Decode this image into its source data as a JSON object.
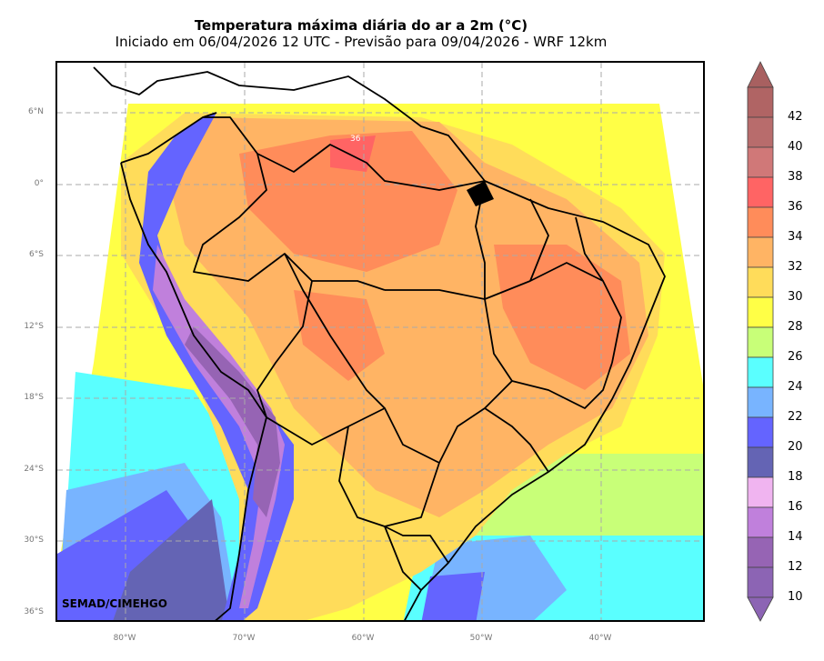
{
  "header": {
    "title": "Temperatura máxima diária do ar a 2m (°C)",
    "subtitle": "Iniciado em 06/04/2026 12 UTC - Previsão para 09/04/2026 - WRF 12km"
  },
  "map": {
    "lat_ticks": [
      "6°N",
      "0°",
      "6°S",
      "12°S",
      "18°S",
      "24°S",
      "30°S",
      "36°S"
    ],
    "lon_ticks": [
      "80°W",
      "70°W",
      "60°W",
      "50°W",
      "40°W"
    ],
    "hotspot_label": "36",
    "credit": "SEMAD/CIMEHGO"
  },
  "colorbar": {
    "levels": [
      "42",
      "40",
      "38",
      "36",
      "34",
      "32",
      "30",
      "28",
      "26",
      "24",
      "22",
      "20",
      "18",
      "16",
      "14",
      "12",
      "10"
    ],
    "colors": {
      "over": "#a86060",
      "t40_42": "#b06464",
      "t38_40": "#b86c6c",
      "t36_38": "#d07878",
      "t34_36": "#ff6464",
      "t32_34": "#ff8c5a",
      "t30_32": "#ffb464",
      "t28_30": "#ffdc5a",
      "t26_28": "#ffff46",
      "t24_26": "#c8ff78",
      "t22_24": "#5affff",
      "t20_22": "#78b4ff",
      "t18_20": "#6464ff",
      "t16_18": "#6464b4",
      "t14_16": "#f0b4f0",
      "t12_14": "#c080dc",
      "t10_12": "#9664b4",
      "under": "#8c64b4"
    }
  }
}
